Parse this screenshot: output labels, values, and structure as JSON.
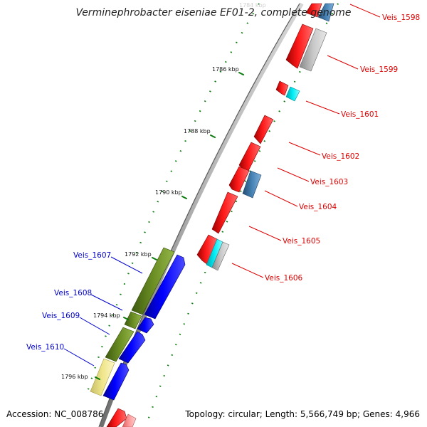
{
  "title": "Verminephrobacter eiseniae EF01-2, complete genome",
  "footer": {
    "accession": "Accession: NC_008786",
    "summary": "Topology: circular; Length: 5,566,749 bp; Genes: 4,966"
  },
  "ticks": [
    "1784 kbp",
    "1786 kbp",
    "1788 kbp",
    "1790 kbp",
    "1792 kbp",
    "1794 kbp",
    "1796 kbp"
  ],
  "colors": {
    "backbone": "#8c8c8c",
    "forward_label": "#dd0000",
    "reverse_label": "#0000cc",
    "tick": "#0a7a0a",
    "cds_red": "#ff0000",
    "cds_blue": "#0000ff",
    "cds_olive": "#6b8e23",
    "cds_steel": "#4682b4",
    "cds_cyan": "#00e5ee",
    "cds_grey": "#c0c0c0",
    "cds_khaki": "#f0e68c",
    "cds_pink": "#ff9a9a"
  },
  "gene_labels_forward": [
    "Veis_1598",
    "Veis_1599",
    "Veis_1601",
    "Veis_1602",
    "Veis_1603",
    "Veis_1604",
    "Veis_1605",
    "Veis_1606"
  ],
  "gene_labels_reverse": [
    "Veis_1607",
    "Veis_1608",
    "Veis_1609",
    "Veis_1610"
  ]
}
